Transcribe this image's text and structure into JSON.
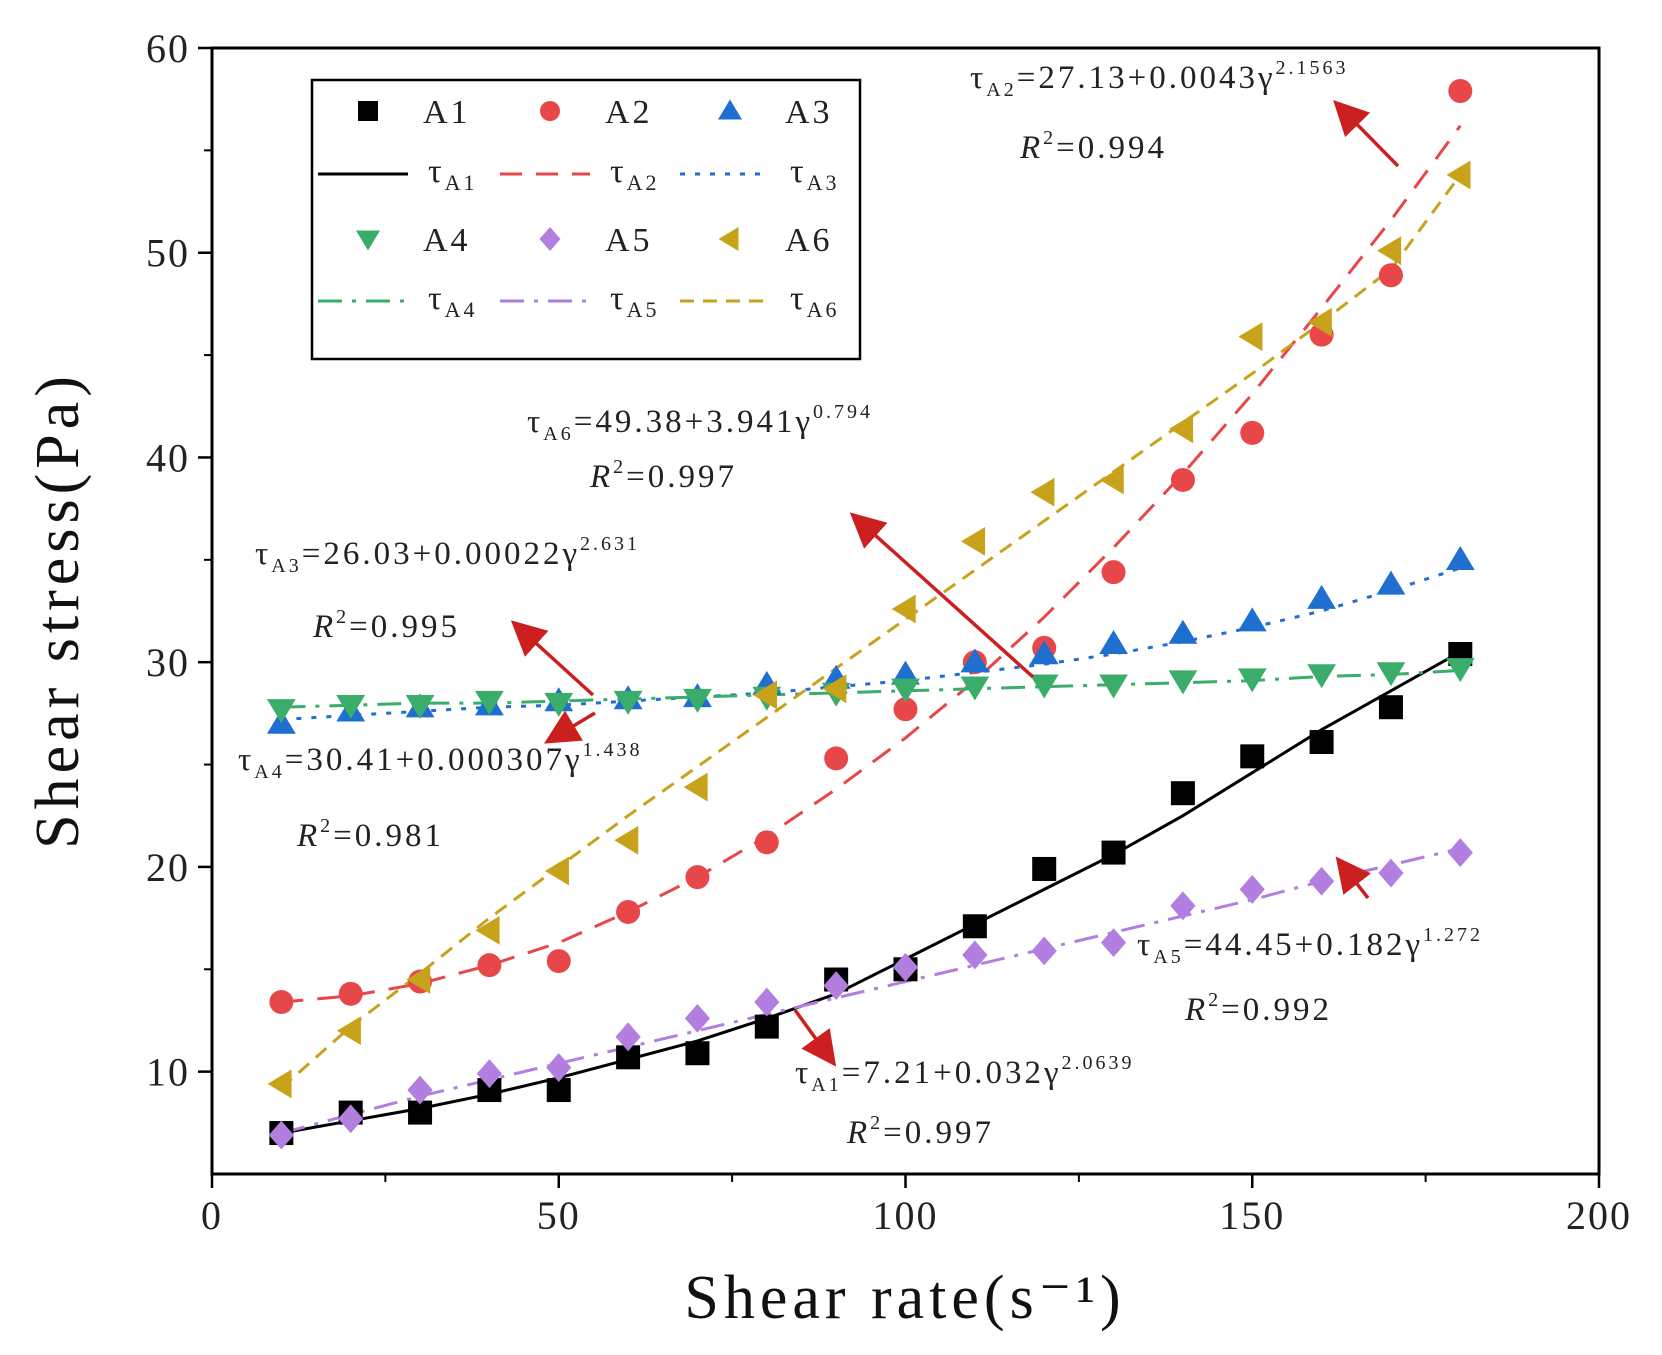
{
  "chart_data": {
    "type": "scatter",
    "xlabel": "Shear rate(s⁻¹)",
    "ylabel": "Shear stress(Pa)",
    "xlim": [
      0,
      200
    ],
    "ylim": [
      5,
      60
    ],
    "x_ticks": [
      "0",
      "50",
      "100",
      "150",
      "200"
    ],
    "y_ticks": [
      "10",
      "20",
      "30",
      "40",
      "50",
      "60"
    ],
    "x": [
      10,
      20,
      30,
      40,
      50,
      60,
      70,
      80,
      90,
      100,
      110,
      120,
      130,
      140,
      150,
      160,
      170,
      180
    ],
    "series": [
      {
        "name": "A1",
        "marker": "square",
        "color": "#000000",
        "fit_name": "τ",
        "fit_sub": "A1",
        "fit_style": "solid",
        "values": [
          7.0,
          8.0,
          8.0,
          9.1,
          9.1,
          10.7,
          10.9,
          12.2,
          14.5,
          15.0,
          17.1,
          19.9,
          20.7,
          23.6,
          25.4,
          26.1,
          27.8,
          30.4
        ],
        "fit": [
          7.0,
          7.6,
          8.2,
          8.9,
          9.7,
          10.6,
          11.5,
          12.6,
          13.8,
          15.5,
          17.2,
          18.9,
          20.6,
          22.5,
          24.6,
          26.7,
          28.6,
          30.5
        ]
      },
      {
        "name": "A2",
        "marker": "circle",
        "color": "#e8474a",
        "fit_name": "τ",
        "fit_sub": "A2",
        "fit_style": "dash",
        "values": [
          13.4,
          13.8,
          14.4,
          15.2,
          15.4,
          17.8,
          19.5,
          21.2,
          25.3,
          27.7,
          30.0,
          30.7,
          34.4,
          38.9,
          41.2,
          46.0,
          48.9,
          57.9
        ],
        "fit": [
          13.4,
          13.7,
          14.3,
          15.2,
          16.3,
          17.8,
          19.5,
          21.5,
          23.8,
          26.3,
          29.1,
          32.2,
          35.6,
          39.2,
          43.1,
          47.3,
          51.6,
          56.2
        ]
      },
      {
        "name": "A3",
        "marker": "triangle-up",
        "color": "#1f6fd1",
        "fit_name": "τ",
        "fit_sub": "A3",
        "fit_style": "dot",
        "values": [
          27.0,
          27.6,
          27.8,
          27.9,
          28.1,
          28.2,
          28.3,
          28.9,
          29.2,
          29.4,
          30.0,
          30.4,
          30.9,
          31.4,
          32.0,
          33.1,
          33.8,
          35.0
        ],
        "fit": [
          27.2,
          27.4,
          27.6,
          27.8,
          27.9,
          28.1,
          28.3,
          28.5,
          28.8,
          29.1,
          29.5,
          29.9,
          30.4,
          31.0,
          31.7,
          32.5,
          33.5,
          34.6
        ]
      },
      {
        "name": "A4",
        "marker": "triangle-down",
        "color": "#3aad6a",
        "fit_name": "τ",
        "fit_sub": "A4",
        "fit_style": "dashdot",
        "values": [
          27.7,
          27.9,
          27.9,
          28.1,
          28.0,
          28.1,
          28.2,
          28.3,
          28.5,
          28.7,
          28.8,
          28.9,
          28.9,
          29.1,
          29.2,
          29.4,
          29.5,
          29.7
        ],
        "fit": [
          27.8,
          27.9,
          28.0,
          28.0,
          28.1,
          28.2,
          28.3,
          28.4,
          28.5,
          28.6,
          28.7,
          28.8,
          28.9,
          29.0,
          29.1,
          29.3,
          29.4,
          29.6
        ]
      },
      {
        "name": "A5",
        "marker": "diamond",
        "color": "#b27ee0",
        "fit_name": "τ",
        "fit_sub": "A5",
        "fit_style": "dashdot",
        "values": [
          6.9,
          7.7,
          9.1,
          9.9,
          10.2,
          11.7,
          12.6,
          13.4,
          14.2,
          15.1,
          15.7,
          15.9,
          16.3,
          18.1,
          18.9,
          19.3,
          19.7,
          20.7
        ],
        "fit": [
          7.0,
          7.9,
          8.8,
          9.6,
          10.4,
          11.2,
          12.0,
          12.8,
          13.6,
          14.4,
          15.2,
          16.0,
          16.8,
          17.6,
          18.4,
          19.3,
          20.1,
          20.9
        ]
      },
      {
        "name": "A6",
        "marker": "triangle-left",
        "color": "#c9a21c",
        "fit_name": "τ",
        "fit_sub": "A6",
        "fit_style": "shortdash",
        "values": [
          9.4,
          12.0,
          14.5,
          16.9,
          19.8,
          21.3,
          23.9,
          28.4,
          28.7,
          32.6,
          35.9,
          38.3,
          38.9,
          41.4,
          45.9,
          46.6,
          50.1,
          53.8
        ],
        "fit": [
          9.2,
          12.2,
          14.8,
          17.5,
          20.0,
          22.5,
          24.9,
          27.3,
          29.7,
          32.1,
          34.5,
          36.9,
          39.3,
          41.7,
          44.1,
          46.6,
          49.2,
          53.8
        ]
      }
    ],
    "annotations": [
      {
        "id": "a2",
        "prefix": "τ",
        "sub": "A2",
        "mid": "=27.13+0.0043γ",
        "sup": "2.1563",
        "r2_lead": "R",
        "r2_sup": "2",
        "r2_val": "=0.994"
      },
      {
        "id": "a6",
        "prefix": "τ",
        "sub": "A6",
        "mid": "=49.38+3.941γ",
        "sup": "0.794",
        "r2_lead": "R",
        "r2_sup": "2",
        "r2_val": "=0.997"
      },
      {
        "id": "a3",
        "prefix": "τ",
        "sub": "A3",
        "mid": "=26.03+0.00022γ",
        "sup": "2.631",
        "r2_lead": "R",
        "r2_sup": "2",
        "r2_val": "=0.995"
      },
      {
        "id": "a4",
        "prefix": "τ",
        "sub": "A4",
        "mid": "=30.41+0.000307γ",
        "sup": "1.438",
        "r2_lead": "R",
        "r2_sup": "2",
        "r2_val": "=0.981"
      },
      {
        "id": "a5",
        "prefix": "τ",
        "sub": "A5",
        "mid": "=44.45+0.182γ",
        "sup": "1.272",
        "r2_lead": "R",
        "r2_sup": "2",
        "r2_val": "=0.992"
      },
      {
        "id": "a1",
        "prefix": "τ",
        "sub": "A1",
        "mid": "=7.21+0.032γ",
        "sup": "2.0639",
        "r2_lead": "R",
        "r2_sup": "2",
        "r2_val": "=0.997"
      }
    ],
    "arrow_color": "#cc1f1f",
    "legend_position": "top-left"
  }
}
